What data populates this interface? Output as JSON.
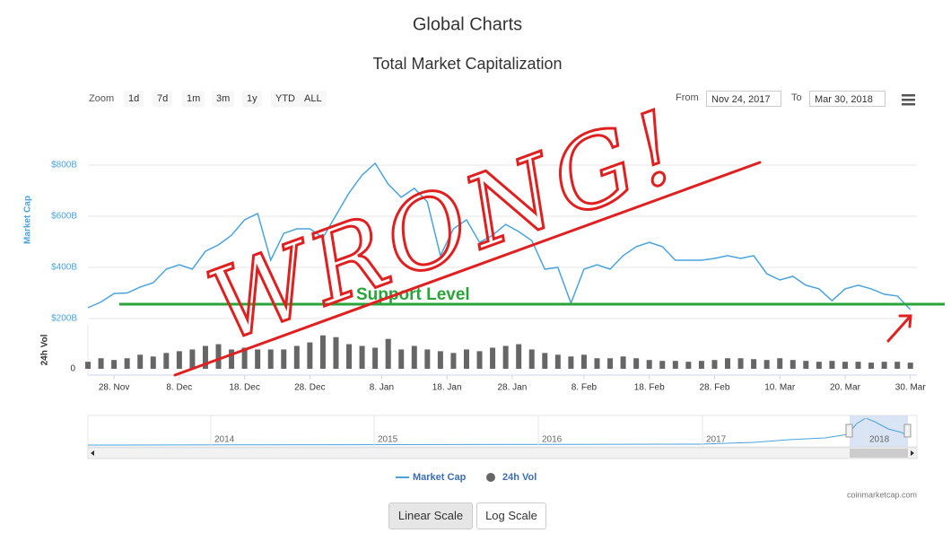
{
  "heading": "Global Charts",
  "zoom": {
    "label": "Zoom",
    "buttons": [
      "1d",
      "7d",
      "1m",
      "3m",
      "1y",
      "YTD",
      "ALL"
    ]
  },
  "range": {
    "from_label": "From",
    "from": "Nov 24, 2017",
    "to_label": "To",
    "to": "Mar 30, 2018"
  },
  "navigator_labels": [
    "2014",
    "2015",
    "2016",
    "2017",
    "2018"
  ],
  "credit": "coinmarketcap.com",
  "scale_buttons": [
    "Linear Scale",
    "Log Scale"
  ],
  "annotations": {
    "text": "WRONG!",
    "support_label": "Support Level",
    "support_value": 256,
    "support_color": "#2aa43a",
    "ink_color": "#e02020"
  },
  "chart_data": {
    "type": "line",
    "title": "Total Market Capitalization",
    "ylabel": "Market Cap",
    "y2label": "24h Vol",
    "x": [
      "2017-11-24",
      "2017-11-26",
      "2017-11-28",
      "2017-11-30",
      "2017-12-02",
      "2017-12-04",
      "2017-12-06",
      "2017-12-08",
      "2017-12-10",
      "2017-12-12",
      "2017-12-14",
      "2017-12-16",
      "2017-12-18",
      "2017-12-20",
      "2017-12-22",
      "2017-12-24",
      "2017-12-26",
      "2017-12-28",
      "2017-12-30",
      "2018-01-01",
      "2018-01-03",
      "2018-01-05",
      "2018-01-07",
      "2018-01-09",
      "2018-01-11",
      "2018-01-13",
      "2018-01-15",
      "2018-01-17",
      "2018-01-19",
      "2018-01-21",
      "2018-01-23",
      "2018-01-25",
      "2018-01-27",
      "2018-01-29",
      "2018-01-31",
      "2018-02-02",
      "2018-02-04",
      "2018-02-06",
      "2018-02-08",
      "2018-02-10",
      "2018-02-12",
      "2018-02-14",
      "2018-02-16",
      "2018-02-18",
      "2018-02-20",
      "2018-02-22",
      "2018-02-24",
      "2018-02-26",
      "2018-02-28",
      "2018-03-02",
      "2018-03-04",
      "2018-03-06",
      "2018-03-08",
      "2018-03-10",
      "2018-03-12",
      "2018-03-14",
      "2018-03-16",
      "2018-03-18",
      "2018-03-20",
      "2018-03-22",
      "2018-03-24",
      "2018-03-26",
      "2018-03-28",
      "2018-03-30"
    ],
    "series": [
      {
        "name": "Market Cap",
        "type": "line",
        "color": "#4aa3df",
        "values": [
          242,
          265,
          298,
          300,
          323,
          340,
          393,
          410,
          393,
          463,
          488,
          526,
          586,
          611,
          428,
          533,
          551,
          551,
          516,
          604,
          691,
          761,
          807,
          726,
          674,
          709,
          656,
          446,
          551,
          586,
          498,
          526,
          568,
          540,
          505,
          393,
          400,
          260,
          393,
          410,
          393,
          446,
          481,
          498,
          481,
          428,
          428,
          428,
          435,
          446,
          435,
          446,
          375,
          351,
          365,
          330,
          316,
          270,
          316,
          330,
          316,
          295,
          288,
          235
        ]
      },
      {
        "name": "24h Vol",
        "type": "bar",
        "axis": "y2",
        "color": "#666666",
        "values": [
          8,
          12,
          10,
          12,
          16,
          14,
          18,
          20,
          22,
          26,
          28,
          22,
          24,
          22,
          22,
          22,
          26,
          30,
          38,
          36,
          28,
          26,
          24,
          34,
          22,
          26,
          22,
          20,
          18,
          22,
          20,
          24,
          26,
          28,
          22,
          18,
          16,
          14,
          16,
          12,
          12,
          14,
          12,
          10,
          9,
          9,
          8,
          9,
          10,
          12,
          12,
          11,
          10,
          12,
          10,
          9,
          8,
          9,
          8,
          8,
          7,
          8,
          8,
          7
        ]
      }
    ],
    "xlim": [
      "2017-11-24",
      "2018-03-31"
    ],
    "xticks": [
      {
        "value": "2017-11-28",
        "label": "28. Nov"
      },
      {
        "value": "2017-12-08",
        "label": "8. Dec"
      },
      {
        "value": "2017-12-18",
        "label": "18. Dec"
      },
      {
        "value": "2017-12-28",
        "label": "28. Dec"
      },
      {
        "value": "2018-01-08",
        "label": "8. Jan"
      },
      {
        "value": "2018-01-18",
        "label": "18. Jan"
      },
      {
        "value": "2018-01-28",
        "label": "28. Jan"
      },
      {
        "value": "2018-02-08",
        "label": "8. Feb"
      },
      {
        "value": "2018-02-18",
        "label": "18. Feb"
      },
      {
        "value": "2018-02-28",
        "label": "28. Feb"
      },
      {
        "value": "2018-03-10",
        "label": "10. Mar"
      },
      {
        "value": "2018-03-20",
        "label": "20. Mar"
      },
      {
        "value": "2018-03-30",
        "label": "30. Mar"
      }
    ],
    "ylim": [
      200,
      1000
    ],
    "yticks": [
      {
        "value": 200,
        "label": "$200B"
      },
      {
        "value": 400,
        "label": "$400B"
      },
      {
        "value": 600,
        "label": "$600B"
      },
      {
        "value": 800,
        "label": "$800B"
      }
    ],
    "y2lim": [
      0,
      50
    ],
    "y2ticks": [
      0
    ],
    "grid": true
  }
}
